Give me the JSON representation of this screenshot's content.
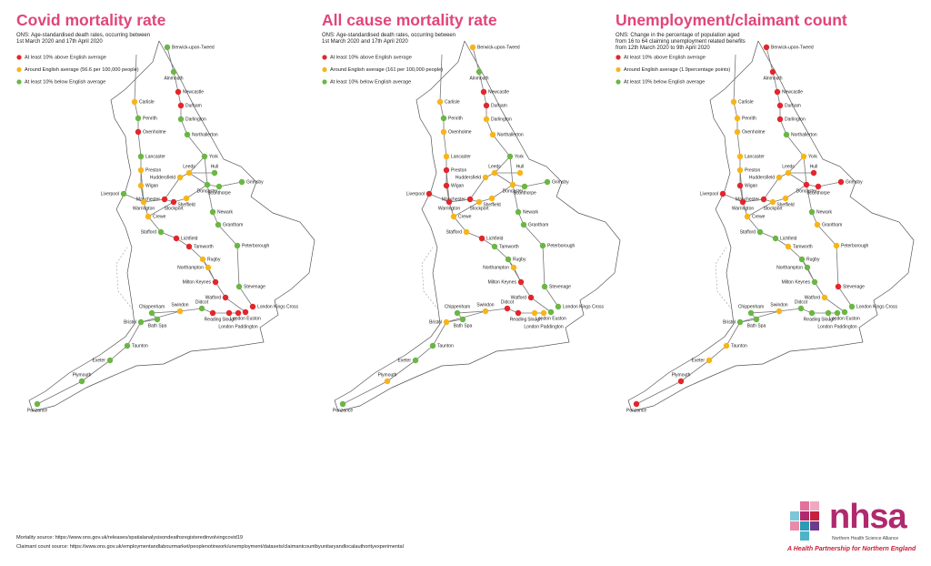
{
  "status_colors": {
    "above": "#e3262b",
    "average": "#f7b519",
    "below": "#6bb644"
  },
  "stations": [
    "Berwick-upon-Tweed",
    "Alnmouth",
    "Newcastle",
    "Durham",
    "Darlington",
    "Northallerton",
    "York",
    "Carlisle",
    "Penrith",
    "Oxenholme",
    "Lancaster",
    "Preston",
    "Huddersfield",
    "Wigan",
    "Leeds",
    "Hull",
    "Grimsby",
    "Doncaster",
    "Scunthorpe",
    "Liverpool",
    "Manchester",
    "Warrington",
    "Stockport",
    "Sheffield",
    "Crewe",
    "Newark",
    "Grantham",
    "Stafford",
    "Lichfield",
    "Tamworth",
    "Peterborough",
    "Rugby",
    "Northampton",
    "Milton Keynes",
    "Stevenage",
    "Watford",
    "London Kings Cross",
    "London Euston",
    "London Paddington",
    "Slough",
    "Reading",
    "Didcot",
    "Swindon",
    "Chippenham",
    "Bristol",
    "Bath Spa",
    "Taunton",
    "Exeter",
    "Plymouth",
    "Penzance"
  ],
  "maps": [
    {
      "title": "Covid mortality rate",
      "description": "ONS: Age-standardised death rates, occurring between 1st March 2020 and 17th April 2020",
      "legend": [
        {
          "label": "At least 10% above English average",
          "status": "above"
        },
        {
          "label": "Around English average (56.6 per 100,000 people)",
          "status": "average"
        },
        {
          "label": "At least 10% below English average",
          "status": "below"
        }
      ],
      "status": [
        "below",
        "below",
        "above",
        "above",
        "below",
        "below",
        "below",
        "average",
        "below",
        "above",
        "below",
        "average",
        "average",
        "average",
        "average",
        "below",
        "below",
        "below",
        "below",
        "below",
        "above",
        "average",
        "above",
        "average",
        "average",
        "below",
        "below",
        "below",
        "above",
        "above",
        "below",
        "average",
        "average",
        "above",
        "below",
        "above",
        "above",
        "above",
        "above",
        "above",
        "above",
        "below",
        "average",
        "below",
        "below",
        "below",
        "below",
        "below",
        "below",
        "below"
      ]
    },
    {
      "title": "All cause mortality rate",
      "description": "ONS: Age-standardised death rates, occurring between 1st March 2020 and 17th April 2020",
      "legend": [
        {
          "label": "At least 10% above English average",
          "status": "above"
        },
        {
          "label": "Around English average (161 per 100,000 people)",
          "status": "average"
        },
        {
          "label": "At least 10% below English average",
          "status": "below"
        }
      ],
      "status": [
        "average",
        "below",
        "above",
        "above",
        "average",
        "average",
        "below",
        "average",
        "below",
        "average",
        "average",
        "above",
        "average",
        "above",
        "average",
        "average",
        "below",
        "average",
        "below",
        "above",
        "above",
        "above",
        "average",
        "average",
        "average",
        "below",
        "below",
        "average",
        "above",
        "below",
        "below",
        "below",
        "average",
        "above",
        "below",
        "above",
        "below",
        "below",
        "average",
        "average",
        "above",
        "above",
        "average",
        "below",
        "average",
        "below",
        "below",
        "below",
        "average",
        "below"
      ]
    },
    {
      "title": "Unemployment/claimant count",
      "description": "ONS: Change in the percentage of population aged from 16 to 64 claiming unemployment related benefits from 12th March 2020 to 9th April 2020",
      "legend": [
        {
          "label": "At least 10% above English average",
          "status": "above"
        },
        {
          "label": "Around English average (1.9percentage points)",
          "status": "average"
        },
        {
          "label": "At least 10% below English average",
          "status": "below"
        }
      ],
      "status": [
        "above",
        "above",
        "above",
        "above",
        "above",
        "below",
        "average",
        "average",
        "average",
        "average",
        "average",
        "average",
        "average",
        "above",
        "average",
        "above",
        "above",
        "above",
        "above",
        "above",
        "above",
        "above",
        "average",
        "average",
        "average",
        "below",
        "average",
        "below",
        "below",
        "average",
        "average",
        "below",
        "below",
        "below",
        "above",
        "average",
        "below",
        "below",
        "below",
        "below",
        "below",
        "below",
        "average",
        "below",
        "below",
        "below",
        "average",
        "average",
        "above",
        "above"
      ]
    }
  ],
  "sources": [
    "Mortality source: https://www.ons.gov.uk/releases/spatialanalysisondeathsregisteredinvolvingcovid19",
    "Claimant count source: https://www.ons.gov.uk/employmentandlabourmarket/peoplenotinwork/unemployment/datasets/claimantcountbyunitaryandlocalauthorityexperimental"
  ],
  "logo": {
    "name": "nhsa",
    "subtitle": "Northern Health Science Alliance",
    "tagline": "A Health Partnership for Northern England"
  }
}
